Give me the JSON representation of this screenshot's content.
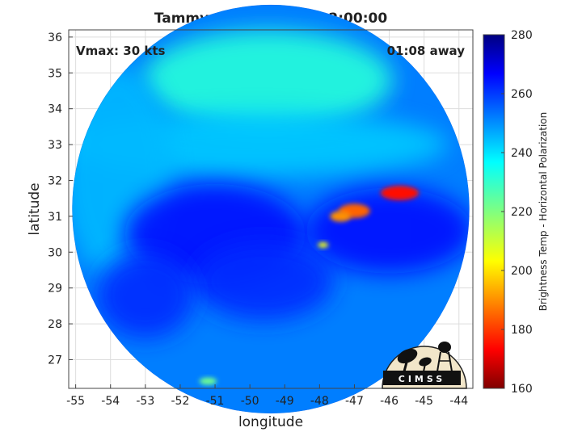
{
  "chart_data": {
    "type": "heatmap",
    "title": "Tammy: 29-Oct-2023 22:00:00",
    "xlabel": "longitude",
    "ylabel": "latitude",
    "xlim": [
      -55.2,
      -43.6
    ],
    "ylim": [
      26.2,
      36.2
    ],
    "x_ticks": [
      -55,
      -54,
      -53,
      -52,
      -51,
      -50,
      -49,
      -48,
      -47,
      -46,
      -45,
      -44
    ],
    "y_ticks": [
      27,
      28,
      29,
      30,
      31,
      32,
      33,
      34,
      35,
      36
    ],
    "grid": true,
    "annotations": {
      "top_left": "Vmax: 30 kts",
      "top_right": "01:08 away"
    },
    "colorbar": {
      "label": "Brightness Temp - Horizontal Polarization",
      "min": 160,
      "max": 280,
      "ticks": [
        160,
        180,
        200,
        220,
        240,
        260,
        280
      ],
      "colormap": "jet"
    },
    "swath": {
      "center": [
        -49.4,
        31.2
      ],
      "radius_deg": 5.7
    },
    "features": [
      {
        "type": "background",
        "value": 252
      },
      {
        "type": "region",
        "center": [
          -49.5,
          34.8
        ],
        "radius": [
          3.6,
          1.4
        ],
        "value": 232
      },
      {
        "type": "region",
        "center": [
          -49.8,
          33.0
        ],
        "radius": [
          5.5,
          0.9
        ],
        "value": 243
      },
      {
        "type": "region",
        "center": [
          -53.8,
          32.2
        ],
        "radius": [
          1.6,
          3.0
        ],
        "value": 245
      },
      {
        "type": "region",
        "center": [
          -51.0,
          30.5
        ],
        "radius": [
          2.6,
          1.4
        ],
        "value": 265
      },
      {
        "type": "region",
        "center": [
          -49.6,
          29.2
        ],
        "radius": [
          2.0,
          1.1
        ],
        "value": 262
      },
      {
        "type": "region",
        "center": [
          -46.0,
          30.6
        ],
        "radius": [
          2.4,
          1.2
        ],
        "value": 266
      },
      {
        "type": "region",
        "center": [
          -53.0,
          28.8
        ],
        "radius": [
          1.4,
          1.2
        ],
        "value": 262
      },
      {
        "type": "convection",
        "center": [
          -45.7,
          31.65
        ],
        "radius": [
          0.55,
          0.2
        ],
        "value": 175
      },
      {
        "type": "convection",
        "center": [
          -47.0,
          31.15
        ],
        "radius": [
          0.45,
          0.2
        ],
        "value": 185
      },
      {
        "type": "convection",
        "center": [
          -47.4,
          31.0
        ],
        "radius": [
          0.3,
          0.15
        ],
        "value": 190
      },
      {
        "type": "convection",
        "center": [
          -47.9,
          30.2
        ],
        "radius": [
          0.15,
          0.08
        ],
        "value": 205
      },
      {
        "type": "convection",
        "center": [
          -51.2,
          26.4
        ],
        "radius": [
          0.25,
          0.1
        ],
        "value": 222
      }
    ]
  },
  "logo": {
    "text": "CIMSS"
  }
}
